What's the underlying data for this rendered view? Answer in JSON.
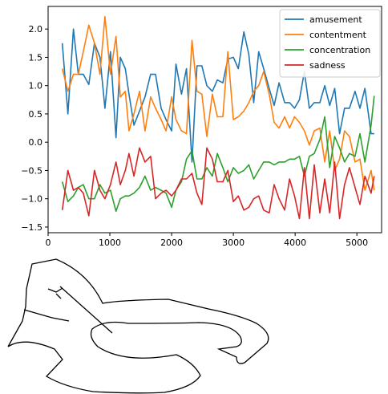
{
  "chart_data": {
    "type": "line",
    "title": "",
    "xlabel": "",
    "ylabel": "",
    "xlim": [
      0,
      5400
    ],
    "ylim": [
      -1.6,
      2.4
    ],
    "xticks": [
      0,
      1000,
      2000,
      3000,
      4000,
      5000
    ],
    "yticks": [
      -1.5,
      -1.0,
      -0.5,
      0.0,
      0.5,
      1.0,
      1.5,
      2.0
    ],
    "xtick_labels": [
      "0",
      "1000",
      "2000",
      "3000",
      "4000",
      "5000"
    ],
    "ytick_labels": [
      "−1.5",
      "−1.0",
      "−0.5",
      "0.0",
      "0.5",
      "1.0",
      "1.5",
      "2.0"
    ],
    "grid": false,
    "legend_position": "top-right",
    "series": [
      {
        "name": "amusement",
        "color": "#1f77b4",
        "x": [
          230,
          320,
          410,
          490,
          570,
          660,
          750,
          840,
          920,
          1010,
          1100,
          1170,
          1250,
          1310,
          1390,
          1480,
          1570,
          1660,
          1740,
          1830,
          1910,
          2000,
          2070,
          2160,
          2240,
          2330,
          2410,
          2490,
          2570,
          2660,
          2740,
          2830,
          2910,
          3000,
          3080,
          3170,
          3250,
          3330,
          3410,
          3490,
          3580,
          3660,
          3740,
          3830,
          3910,
          3990,
          4070,
          4150,
          4230,
          4310,
          4400,
          4480,
          4560,
          4640,
          4720,
          4800,
          4880,
          4970,
          5050,
          5130,
          5230,
          5280
        ],
        "values": [
          1.75,
          0.5,
          2.0,
          1.2,
          1.2,
          1.02,
          1.75,
          1.5,
          0.6,
          1.6,
          0.08,
          1.5,
          1.3,
          0.85,
          0.3,
          0.55,
          0.8,
          1.2,
          1.2,
          0.6,
          0.4,
          0.2,
          1.38,
          0.85,
          1.3,
          -0.35,
          1.35,
          1.35,
          1.0,
          0.9,
          1.1,
          1.05,
          1.47,
          1.5,
          1.3,
          1.95,
          1.55,
          0.7,
          1.6,
          1.3,
          0.95,
          0.65,
          1.05,
          0.7,
          0.7,
          0.6,
          0.75,
          1.25,
          0.6,
          0.7,
          0.7,
          1.0,
          0.65,
          0.95,
          0.15,
          0.6,
          0.6,
          0.9,
          0.6,
          0.95,
          0.15,
          0.15
        ]
      },
      {
        "name": "contentment",
        "color": "#ff7f0e",
        "x": [
          230,
          320,
          410,
          490,
          570,
          660,
          750,
          840,
          920,
          1010,
          1100,
          1170,
          1250,
          1310,
          1390,
          1480,
          1570,
          1660,
          1740,
          1830,
          1910,
          2000,
          2070,
          2160,
          2240,
          2330,
          2410,
          2490,
          2570,
          2660,
          2740,
          2830,
          2910,
          3000,
          3080,
          3170,
          3250,
          3330,
          3410,
          3490,
          3580,
          3660,
          3740,
          3830,
          3910,
          3990,
          4070,
          4150,
          4230,
          4310,
          4400,
          4480,
          4560,
          4640,
          4720,
          4800,
          4880,
          4970,
          5050,
          5130,
          5230,
          5280
        ],
        "values": [
          1.3,
          0.9,
          1.2,
          1.2,
          1.6,
          2.07,
          1.75,
          1.2,
          2.22,
          1.2,
          1.87,
          0.8,
          0.9,
          0.2,
          0.5,
          0.9,
          0.2,
          0.8,
          0.6,
          0.4,
          0.2,
          0.8,
          0.4,
          0.2,
          0.15,
          1.8,
          0.9,
          0.85,
          0.1,
          0.85,
          0.45,
          0.45,
          1.6,
          0.4,
          0.45,
          0.55,
          0.7,
          0.9,
          1.0,
          1.25,
          0.85,
          0.35,
          0.25,
          0.45,
          0.25,
          0.45,
          0.35,
          0.2,
          -0.05,
          0.2,
          0.25,
          -0.35,
          0.2,
          -0.5,
          -0.3,
          0.2,
          0.1,
          -0.35,
          -0.3,
          -0.85,
          -0.5,
          -0.85
        ]
      },
      {
        "name": "concentration",
        "color": "#2ca02c",
        "x": [
          230,
          320,
          410,
          490,
          570,
          660,
          750,
          840,
          920,
          1010,
          1100,
          1170,
          1250,
          1310,
          1390,
          1480,
          1570,
          1660,
          1740,
          1830,
          1910,
          2000,
          2070,
          2160,
          2240,
          2330,
          2410,
          2490,
          2570,
          2660,
          2740,
          2830,
          2910,
          3000,
          3080,
          3170,
          3250,
          3330,
          3410,
          3490,
          3580,
          3660,
          3740,
          3830,
          3910,
          3990,
          4070,
          4150,
          4230,
          4310,
          4400,
          4480,
          4560,
          4640,
          4720,
          4800,
          4880,
          4970,
          5050,
          5130,
          5230,
          5280
        ],
        "values": [
          -0.7,
          -1.05,
          -0.95,
          -0.8,
          -0.75,
          -1.0,
          -1.0,
          -0.75,
          -0.9,
          -0.85,
          -1.22,
          -1.0,
          -0.95,
          -0.95,
          -0.9,
          -0.8,
          -0.6,
          -0.85,
          -0.8,
          -0.85,
          -0.9,
          -1.15,
          -0.85,
          -0.7,
          -0.3,
          -0.15,
          -0.65,
          -0.65,
          -0.45,
          -0.6,
          -0.2,
          -0.45,
          -0.7,
          -0.45,
          -0.55,
          -0.5,
          -0.4,
          -0.65,
          -0.5,
          -0.35,
          -0.35,
          -0.4,
          -0.35,
          -0.35,
          -0.3,
          -0.3,
          -0.25,
          -0.6,
          -0.25,
          -0.2,
          0.05,
          0.45,
          -0.45,
          0.1,
          -0.1,
          -0.35,
          -0.2,
          -0.25,
          0.15,
          -0.35,
          0.3,
          0.82
        ]
      },
      {
        "name": "sadness",
        "color": "#d62728",
        "x": [
          230,
          320,
          410,
          490,
          570,
          660,
          750,
          840,
          920,
          1010,
          1100,
          1170,
          1250,
          1310,
          1390,
          1480,
          1570,
          1660,
          1740,
          1830,
          1910,
          2000,
          2070,
          2160,
          2240,
          2330,
          2410,
          2490,
          2570,
          2660,
          2740,
          2830,
          2910,
          3000,
          3080,
          3170,
          3250,
          3330,
          3410,
          3490,
          3580,
          3660,
          3740,
          3830,
          3910,
          3990,
          4070,
          4150,
          4230,
          4310,
          4400,
          4480,
          4560,
          4640,
          4720,
          4800,
          4880,
          4970,
          5050,
          5130,
          5230,
          5280
        ],
        "values": [
          -1.2,
          -0.5,
          -0.85,
          -0.8,
          -0.9,
          -1.3,
          -0.5,
          -0.85,
          -1.0,
          -0.75,
          -0.35,
          -0.75,
          -0.5,
          -0.2,
          -0.6,
          -0.1,
          -0.35,
          -0.25,
          -1.0,
          -0.9,
          -0.85,
          -0.95,
          -0.85,
          -0.65,
          -0.65,
          -0.55,
          -0.9,
          -1.1,
          -0.1,
          -0.3,
          -0.7,
          -0.7,
          -0.5,
          -1.05,
          -0.95,
          -1.2,
          -1.15,
          -1.0,
          -0.95,
          -1.2,
          -1.25,
          -0.75,
          -1.0,
          -1.2,
          -0.65,
          -0.95,
          -1.35,
          -0.45,
          -1.35,
          -0.4,
          -1.25,
          -0.65,
          -1.25,
          -0.35,
          -1.35,
          -0.75,
          -0.45,
          -0.8,
          -1.1,
          -0.6,
          -0.9,
          -0.6
        ]
      }
    ]
  },
  "drawing": {
    "stroke_color": "#000000"
  }
}
